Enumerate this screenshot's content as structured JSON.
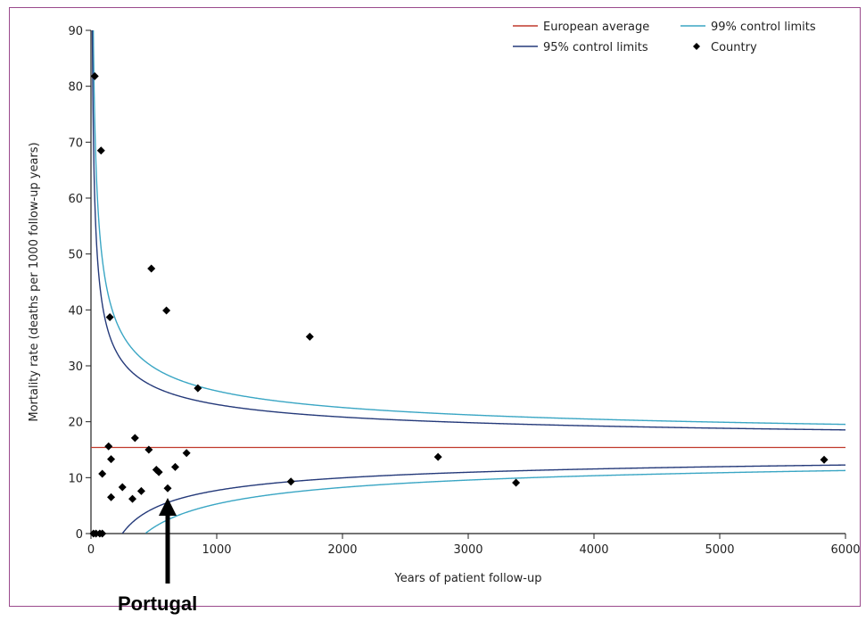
{
  "chart_data": {
    "type": "scatter",
    "title": "",
    "xlabel": "Years of patient follow-up",
    "ylabel": "Mortality rate (deaths per 1000 follow-up years)",
    "xlim": [
      0,
      6000
    ],
    "ylim": [
      0,
      90
    ],
    "xticks": [
      0,
      1000,
      2000,
      3000,
      4000,
      5000,
      6000
    ],
    "yticks": [
      0,
      10,
      20,
      30,
      40,
      50,
      60,
      70,
      80,
      90
    ],
    "grid": false,
    "legend_position": "top-right",
    "legend": [
      {
        "label": "European average",
        "kind": "line",
        "color": "#c0392b"
      },
      {
        "label": "99% control limits",
        "kind": "line",
        "color": "#3aa6c4"
      },
      {
        "label": "95% control limits",
        "kind": "line",
        "color": "#253a7a"
      },
      {
        "label": "Country",
        "kind": "marker",
        "color": "#000000"
      }
    ],
    "european_average": 15.4,
    "control_limits": {
      "z95": 1.96,
      "z99": 2.576
    },
    "series": [
      {
        "name": "Country",
        "points": [
          [
            20,
            0
          ],
          [
            40,
            0
          ],
          [
            70,
            0
          ],
          [
            90,
            0
          ],
          [
            30,
            81.8
          ],
          [
            80,
            68.5
          ],
          [
            150,
            38.7
          ],
          [
            90,
            10.7
          ],
          [
            140,
            15.6
          ],
          [
            160,
            13.3
          ],
          [
            160,
            6.5
          ],
          [
            250,
            8.3
          ],
          [
            330,
            6.2
          ],
          [
            350,
            17.1
          ],
          [
            400,
            7.6
          ],
          [
            460,
            15.0
          ],
          [
            480,
            47.4
          ],
          [
            520,
            11.4
          ],
          [
            540,
            11.0
          ],
          [
            600,
            39.9
          ],
          [
            610,
            8.1
          ],
          [
            670,
            11.9
          ],
          [
            760,
            14.4
          ],
          [
            850,
            26.0
          ],
          [
            1590,
            9.3
          ],
          [
            1740,
            35.2
          ],
          [
            2760,
            13.7
          ],
          [
            3380,
            9.1
          ],
          [
            5830,
            13.2
          ]
        ]
      }
    ],
    "annotations": [
      {
        "text": "Portugal",
        "point": [
          610,
          8.1
        ]
      }
    ]
  }
}
